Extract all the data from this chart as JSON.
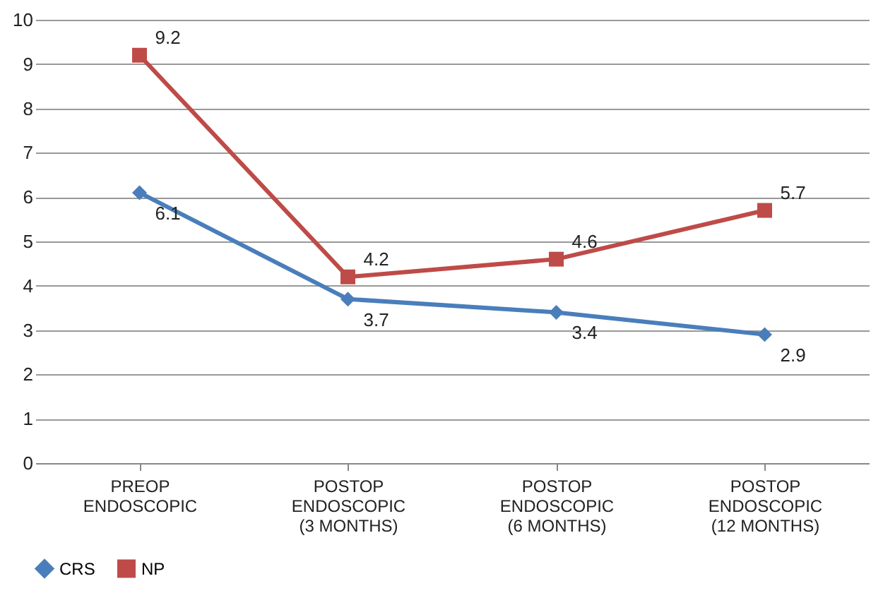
{
  "chart_data": {
    "type": "line",
    "categories": [
      "PREOP\nENDOSCOPIC",
      "POSTOP\nENDOSCOPIC\n(3 MONTHS)",
      "POSTOP\nENDOSCOPIC\n(6 MONTHS)",
      "POSTOP\nENDOSCOPIC\n(12 MONTHS)"
    ],
    "series": [
      {
        "name": "CRS",
        "color": "#4a7ebb",
        "marker": "diamond",
        "values": [
          6.1,
          3.7,
          3.4,
          2.9
        ]
      },
      {
        "name": "NP",
        "color": "#be4b48",
        "marker": "square",
        "values": [
          9.2,
          4.2,
          4.6,
          5.7
        ]
      }
    ],
    "ylim": [
      0,
      10
    ],
    "yticks": [
      0,
      1,
      2,
      3,
      4,
      5,
      6,
      7,
      8,
      9,
      10
    ],
    "grid": "y",
    "legend": "bottom",
    "data_labels": true
  }
}
